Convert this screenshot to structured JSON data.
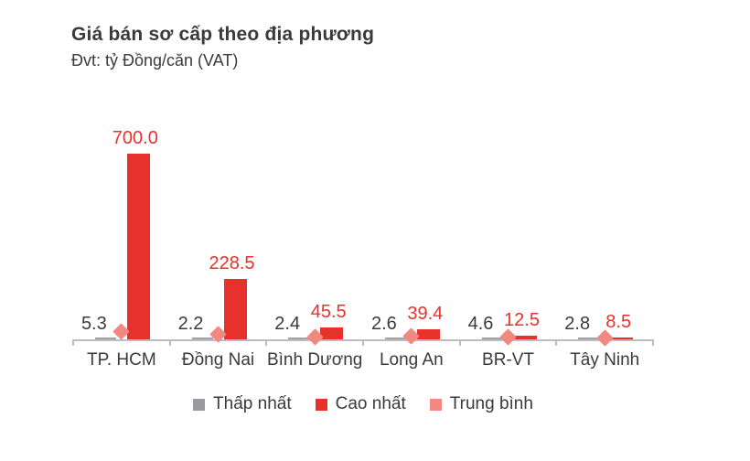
{
  "title": "Giá bán sơ cấp theo địa phương",
  "subtitle": "Đvt: tỷ Đồng/căn (VAT)",
  "colors": {
    "lowest": "#a2a2a6",
    "highest": "#e7312b",
    "average": "#f28980",
    "text_dark": "#3a3a3c",
    "value_label_high": "#e7312b",
    "axis": "#bdbdc1",
    "background": "#ffffff"
  },
  "legend": [
    {
      "label": "Thấp nhất",
      "color": "#9a9a9e",
      "shape": "square"
    },
    {
      "label": "Cao nhất",
      "color": "#e7312b",
      "shape": "square"
    },
    {
      "label": "Trung bình",
      "color": "#f28980",
      "shape": "square"
    }
  ],
  "chart_data": {
    "type": "bar",
    "categories": [
      "TP. HCM",
      "Đồng Nai",
      "Bình Dương",
      "Long An",
      "BR-VT",
      "Tây Ninh"
    ],
    "series": [
      {
        "name": "Thấp nhất",
        "type": "bar",
        "color": "#a2a2a6",
        "values": [
          5.3,
          2.2,
          2.4,
          2.6,
          4.6,
          2.8
        ],
        "labels": [
          "5.3",
          "2.2",
          "2.4",
          "2.6",
          "4.6",
          "2.8"
        ]
      },
      {
        "name": "Cao nhất",
        "type": "bar",
        "color": "#e7312b",
        "values": [
          700.0,
          228.5,
          45.5,
          39.4,
          12.5,
          8.5
        ],
        "labels": [
          "700.0",
          "228.5",
          "45.5",
          "39.4",
          "12.5",
          "8.5"
        ]
      },
      {
        "name": "Trung bình",
        "type": "scatter",
        "marker": "diamond",
        "color": "#f28980",
        "values_labeled": false,
        "values_estimated": true,
        "values": [
          30,
          20,
          10,
          12,
          8,
          6
        ]
      }
    ],
    "ylim": [
      0,
      700
    ],
    "grid": false,
    "legend_position": "bottom",
    "value_labels_shown": [
      "Thấp nhất",
      "Cao nhất"
    ]
  }
}
